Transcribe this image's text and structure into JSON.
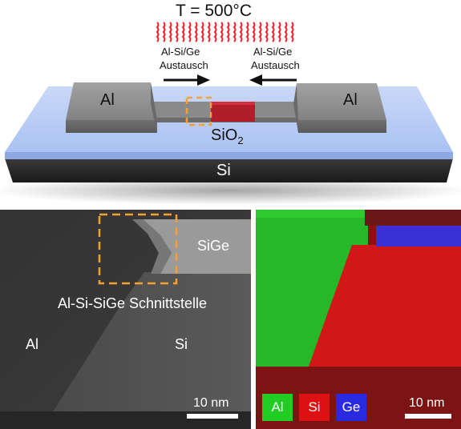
{
  "schematic": {
    "temperature": "T = 500°C",
    "exchange_left": [
      "Al-Si/Ge",
      "Austausch"
    ],
    "exchange_right": [
      "Al-Si/Ge",
      "Austausch"
    ],
    "pad_left": "Al",
    "pad_right": "Al",
    "oxide": "SiO",
    "oxide_sub": "2",
    "substrate": "Si"
  },
  "tem": {
    "region_sige": "SiGe",
    "interface": "Al-Si-SiGe Schnittstelle",
    "region_al": "Al",
    "region_si": "Si",
    "scalebar": "10 nm"
  },
  "eds": {
    "legend": [
      {
        "label": "Al",
        "color": "#22cc22"
      },
      {
        "label": "Si",
        "color": "#dd1111"
      },
      {
        "label": "Ge",
        "color": "#2a2ae0"
      }
    ],
    "scalebar": "10 nm"
  },
  "colors": {
    "heat": "#e8232a",
    "highlight": "#f5a030",
    "oxide": "#a9c2f5",
    "pad": "#8f8f8f",
    "substrate": "#2a2a2a"
  }
}
